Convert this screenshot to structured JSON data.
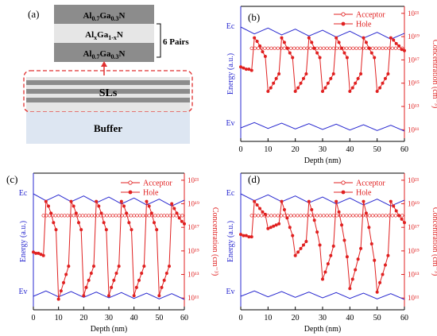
{
  "figure": {
    "panel_a": {
      "panel_label": "(a)",
      "layer_top": "Al0.7Ga0.3N",
      "layer_mid": "AlxGa1-xN",
      "layer_bot": "Al0.7Ga0.3N",
      "pairs_label": "6 Pairs",
      "sl_label": "SLs",
      "buffer_label": "Buffer",
      "colors": {
        "dark_layer": "#8c8c8c",
        "light_layer": "#e6e6e6",
        "buffer": "#dde6f2",
        "dashed": "#e03030"
      }
    }
  },
  "chart_data": [
    {
      "type": "line",
      "panel_label": "(b)",
      "xlabel": "Depth (nm)",
      "ylabel_left": "Energy (a.u.)",
      "ylabel_right": "Concentration (cm⁻³)",
      "xlim": [
        0,
        60
      ],
      "x_ticks": [
        "0",
        "10",
        "20",
        "30",
        "40",
        "50",
        "60"
      ],
      "y_right_ticks": [
        "10¹¹",
        "10¹³",
        "10¹⁵",
        "10¹⁷",
        "10¹⁹",
        "10²¹"
      ],
      "band_labels": {
        "ec": "Ec",
        "ev": "Ev"
      },
      "legend": {
        "placement": "top-right",
        "entries": [
          "Acceptor",
          "Hole"
        ]
      },
      "colors": {
        "band": "#2a2ad0",
        "acceptor": "#e02020",
        "hole": "#e02020"
      },
      "acceptor_log10": 18.0,
      "hole_log10": {
        "x": [
          0,
          1,
          2,
          3,
          4,
          5,
          6,
          7,
          8,
          9,
          10,
          11,
          12,
          13,
          14,
          15,
          16,
          17,
          18,
          19,
          20,
          21,
          22,
          23,
          24,
          25,
          26,
          27,
          28,
          29,
          30,
          31,
          32,
          33,
          34,
          35,
          36,
          37,
          38,
          39,
          40,
          41,
          42,
          43,
          44,
          45,
          46,
          47,
          48,
          49,
          50,
          51,
          52,
          53,
          54,
          55,
          56,
          57,
          58,
          59,
          60
        ],
        "values": [
          16.4,
          16.3,
          16.2,
          16.2,
          16.1,
          18.9,
          18.6,
          18.2,
          17.7,
          17.3,
          14.3,
          14.6,
          15.0,
          15.4,
          15.8,
          18.9,
          18.5,
          18.0,
          17.6,
          17.2,
          14.3,
          14.6,
          15.0,
          15.4,
          15.8,
          18.9,
          18.5,
          18.0,
          17.6,
          17.2,
          14.3,
          14.6,
          15.0,
          15.4,
          15.8,
          18.9,
          18.5,
          18.0,
          17.6,
          17.2,
          14.3,
          14.6,
          15.0,
          15.4,
          15.8,
          18.9,
          18.5,
          18.0,
          17.6,
          17.2,
          14.3,
          14.6,
          15.0,
          15.4,
          15.8,
          18.9,
          18.7,
          18.4,
          18.2,
          17.9,
          17.8
        ]
      }
    },
    {
      "type": "line",
      "panel_label": "(c)",
      "xlabel": "Depth (nm)",
      "ylabel_left": "Energy (a.u.)",
      "ylabel_right": "Concentration (cm⁻³)",
      "xlim": [
        0,
        60
      ],
      "x_ticks": [
        "0",
        "10",
        "20",
        "30",
        "40",
        "50",
        "60"
      ],
      "y_right_ticks": [
        "10¹¹",
        "10¹³",
        "10¹⁵",
        "10¹⁷",
        "10¹⁹",
        "10²¹"
      ],
      "band_labels": {
        "ec": "Ec",
        "ev": "Ev"
      },
      "legend": {
        "placement": "top-right",
        "entries": [
          "Acceptor",
          "Hole"
        ]
      },
      "colors": {
        "band": "#2a2ad0",
        "acceptor": "#e02020",
        "hole": "#e02020"
      },
      "acceptor_log10": 18.0,
      "hole_log10": {
        "x": [
          0,
          1,
          2,
          3,
          4,
          5,
          6,
          7,
          8,
          9,
          10,
          11,
          12,
          13,
          14,
          15,
          16,
          17,
          18,
          19,
          20,
          21,
          22,
          23,
          24,
          25,
          26,
          27,
          28,
          29,
          30,
          31,
          32,
          33,
          34,
          35,
          36,
          37,
          38,
          39,
          40,
          41,
          42,
          43,
          44,
          45,
          46,
          47,
          48,
          49,
          50,
          51,
          52,
          53,
          54,
          55,
          56,
          57,
          58,
          59,
          60
        ],
        "values": [
          14.9,
          14.8,
          14.8,
          14.7,
          14.6,
          19.2,
          18.8,
          18.2,
          17.4,
          16.8,
          10.9,
          11.6,
          12.3,
          13.0,
          13.7,
          19.2,
          18.8,
          18.2,
          17.4,
          16.8,
          11.2,
          11.9,
          12.5,
          13.1,
          13.7,
          19.2,
          18.8,
          18.2,
          17.4,
          16.8,
          11.2,
          11.9,
          12.5,
          13.1,
          13.7,
          19.2,
          18.8,
          18.2,
          17.4,
          16.8,
          11.2,
          11.9,
          12.5,
          13.1,
          13.7,
          19.2,
          18.8,
          18.2,
          17.4,
          16.8,
          11.2,
          11.9,
          12.5,
          13.1,
          13.7,
          19.0,
          18.6,
          18.2,
          17.8,
          17.5,
          17.3
        ]
      }
    },
    {
      "type": "line",
      "panel_label": "(d)",
      "xlabel": "Depth (nm)",
      "ylabel_left": "Energy (a.u.)",
      "ylabel_right": "Concentration (cm⁻³)",
      "xlim": [
        0,
        60
      ],
      "x_ticks": [
        "0",
        "10",
        "20",
        "30",
        "40",
        "50",
        "60"
      ],
      "y_right_ticks": [
        "10¹¹",
        "10¹³",
        "10¹⁵",
        "10¹⁷",
        "10¹⁹",
        "10²¹"
      ],
      "band_labels": {
        "ec": "Ec",
        "ev": "Ev"
      },
      "legend": {
        "placement": "top-right",
        "entries": [
          "Acceptor",
          "Hole"
        ]
      },
      "colors": {
        "band": "#2a2ad0",
        "acceptor": "#e02020",
        "hole": "#e02020"
      },
      "acceptor_log10": 18.0,
      "hole_log10": {
        "x": [
          0,
          1,
          2,
          3,
          4,
          5,
          6,
          7,
          8,
          9,
          10,
          11,
          12,
          13,
          14,
          15,
          16,
          17,
          18,
          19,
          20,
          21,
          22,
          23,
          24,
          25,
          26,
          27,
          28,
          29,
          30,
          31,
          32,
          33,
          34,
          35,
          36,
          37,
          38,
          39,
          40,
          41,
          42,
          43,
          44,
          45,
          46,
          47,
          48,
          49,
          50,
          51,
          52,
          53,
          54,
          55,
          56,
          57,
          58,
          59,
          60
        ],
        "values": [
          16.4,
          16.3,
          16.3,
          16.2,
          16.2,
          19.2,
          18.9,
          18.6,
          18.3,
          18.1,
          16.9,
          17.0,
          17.1,
          17.2,
          17.3,
          19.2,
          18.5,
          17.8,
          17.0,
          16.3,
          14.6,
          14.9,
          15.2,
          15.5,
          15.8,
          19.2,
          18.5,
          17.6,
          16.6,
          15.5,
          12.6,
          13.2,
          13.9,
          14.6,
          15.4,
          19.2,
          18.3,
          17.2,
          15.9,
          14.5,
          11.8,
          12.6,
          13.4,
          14.3,
          15.2,
          19.2,
          18.2,
          17.0,
          15.6,
          14.2,
          11.5,
          12.3,
          13.0,
          13.8,
          14.6,
          19.2,
          18.8,
          18.4,
          18.0,
          17.7,
          17.4
        ]
      }
    }
  ]
}
